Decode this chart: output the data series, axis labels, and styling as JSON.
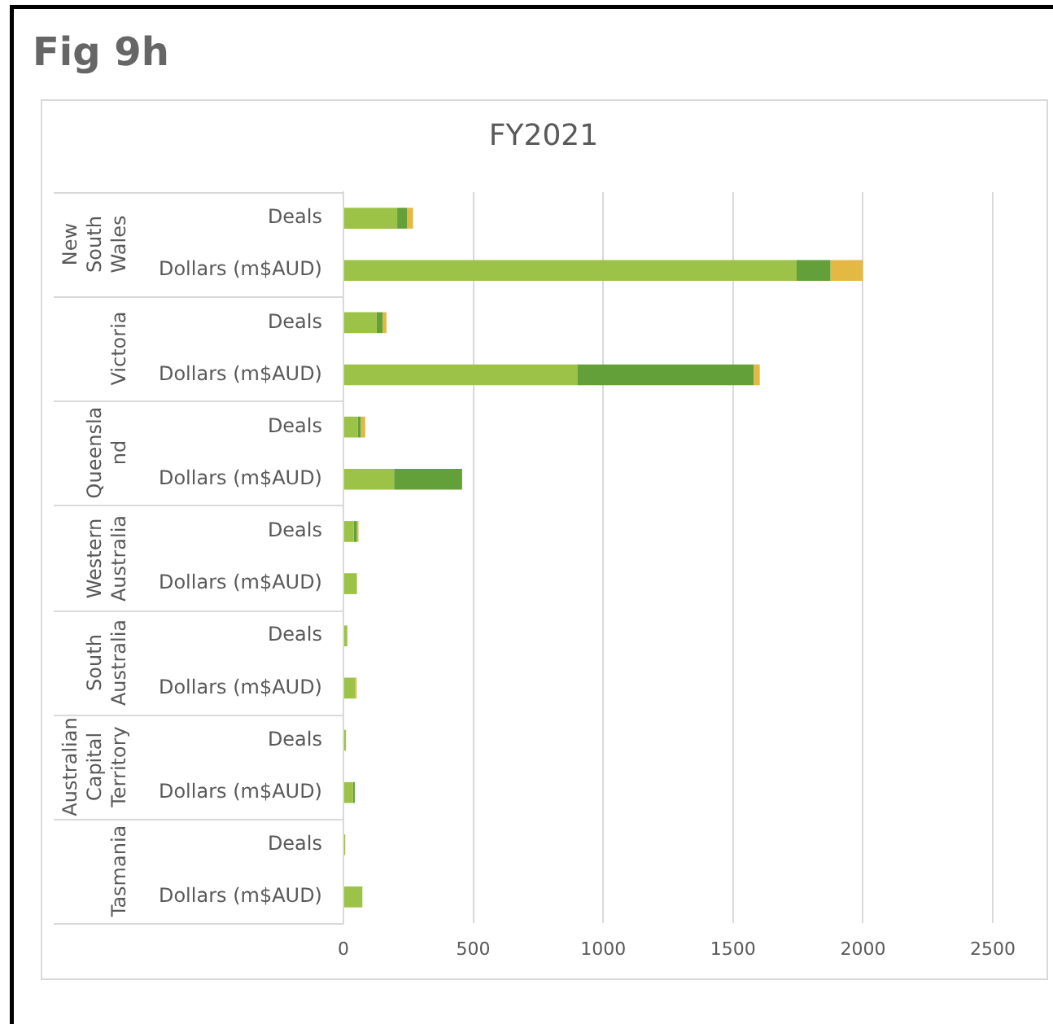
{
  "chart_data": {
    "type": "bar",
    "orientation": "horizontal",
    "stacked": true,
    "title": "Fig 9h",
    "subtitle": "FY2021",
    "categories": [
      "Deals",
      "Dollars (m$AUD)",
      "Deals",
      "Dollars (m$AUD)",
      "Deals",
      "Dollars (m$AUD)",
      "Deals",
      "Dollars (m$AUD)",
      "Deals",
      "Dollars (m$AUD)",
      "Deals",
      "Dollars (m$AUD)",
      "Deals",
      "Dollars (m$AUD)"
    ],
    "annotations": [
      "New South Wales",
      "Victoria",
      "Queensland",
      "Western Australia",
      "South Australia",
      "Australian Capital Territory",
      "Tasmania"
    ],
    "series": [
      {
        "color": "#9cc247",
        "values": [
          207,
          1745,
          128,
          900,
          56,
          195,
          40,
          52,
          15,
          45,
          10,
          36,
          7,
          73
        ]
      },
      {
        "color": "#64a03a",
        "values": [
          38,
          130,
          23,
          680,
          11,
          262,
          12,
          null,
          null,
          null,
          null,
          8,
          null,
          null
        ]
      },
      {
        "color": "#e3b843",
        "values": [
          23,
          125,
          15,
          23,
          17,
          null,
          6,
          null,
          null,
          6,
          null,
          null,
          null,
          null
        ]
      }
    ],
    "xlim": [
      0,
      2500
    ],
    "xticks": [
      0,
      500,
      1000,
      1500,
      2000,
      2500
    ],
    "grid": "x"
  }
}
